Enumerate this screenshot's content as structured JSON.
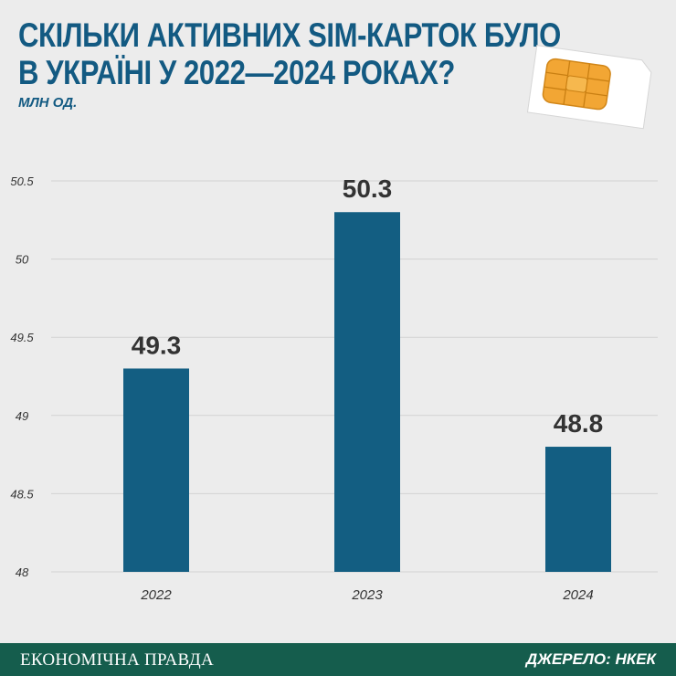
{
  "header": {
    "title_line1": "СКІЛЬКИ АКТИВНИХ SIM-КАРТОК БУЛО",
    "title_line2": "В УКРАЇНІ У 2022—2024 РОКАХ?",
    "subtitle": "МЛН ОД."
  },
  "footer": {
    "brand": "ЕКОНОМІЧНА ПРАВДА",
    "source": "ДЖЕРЕЛО: НКЕК"
  },
  "colors": {
    "bar": "#135e82",
    "title": "#135a82",
    "footer": "#155d4d",
    "sim_chip": "#f2a634"
  },
  "icons": {
    "illustration": "sim-card-icon"
  },
  "chart_data": {
    "type": "bar",
    "categories": [
      "2022",
      "2023",
      "2024"
    ],
    "values": [
      49.3,
      50.3,
      48.8
    ],
    "value_labels": [
      "49.3",
      "50.3",
      "48.8"
    ],
    "ylim": [
      48,
      50.5
    ],
    "yticks": [
      48,
      48.5,
      49,
      49.5,
      50,
      50.5
    ],
    "ytick_labels": [
      "48",
      "48.5",
      "49",
      "49.5",
      "50",
      "50.5"
    ],
    "grid": true,
    "legend": "none"
  }
}
